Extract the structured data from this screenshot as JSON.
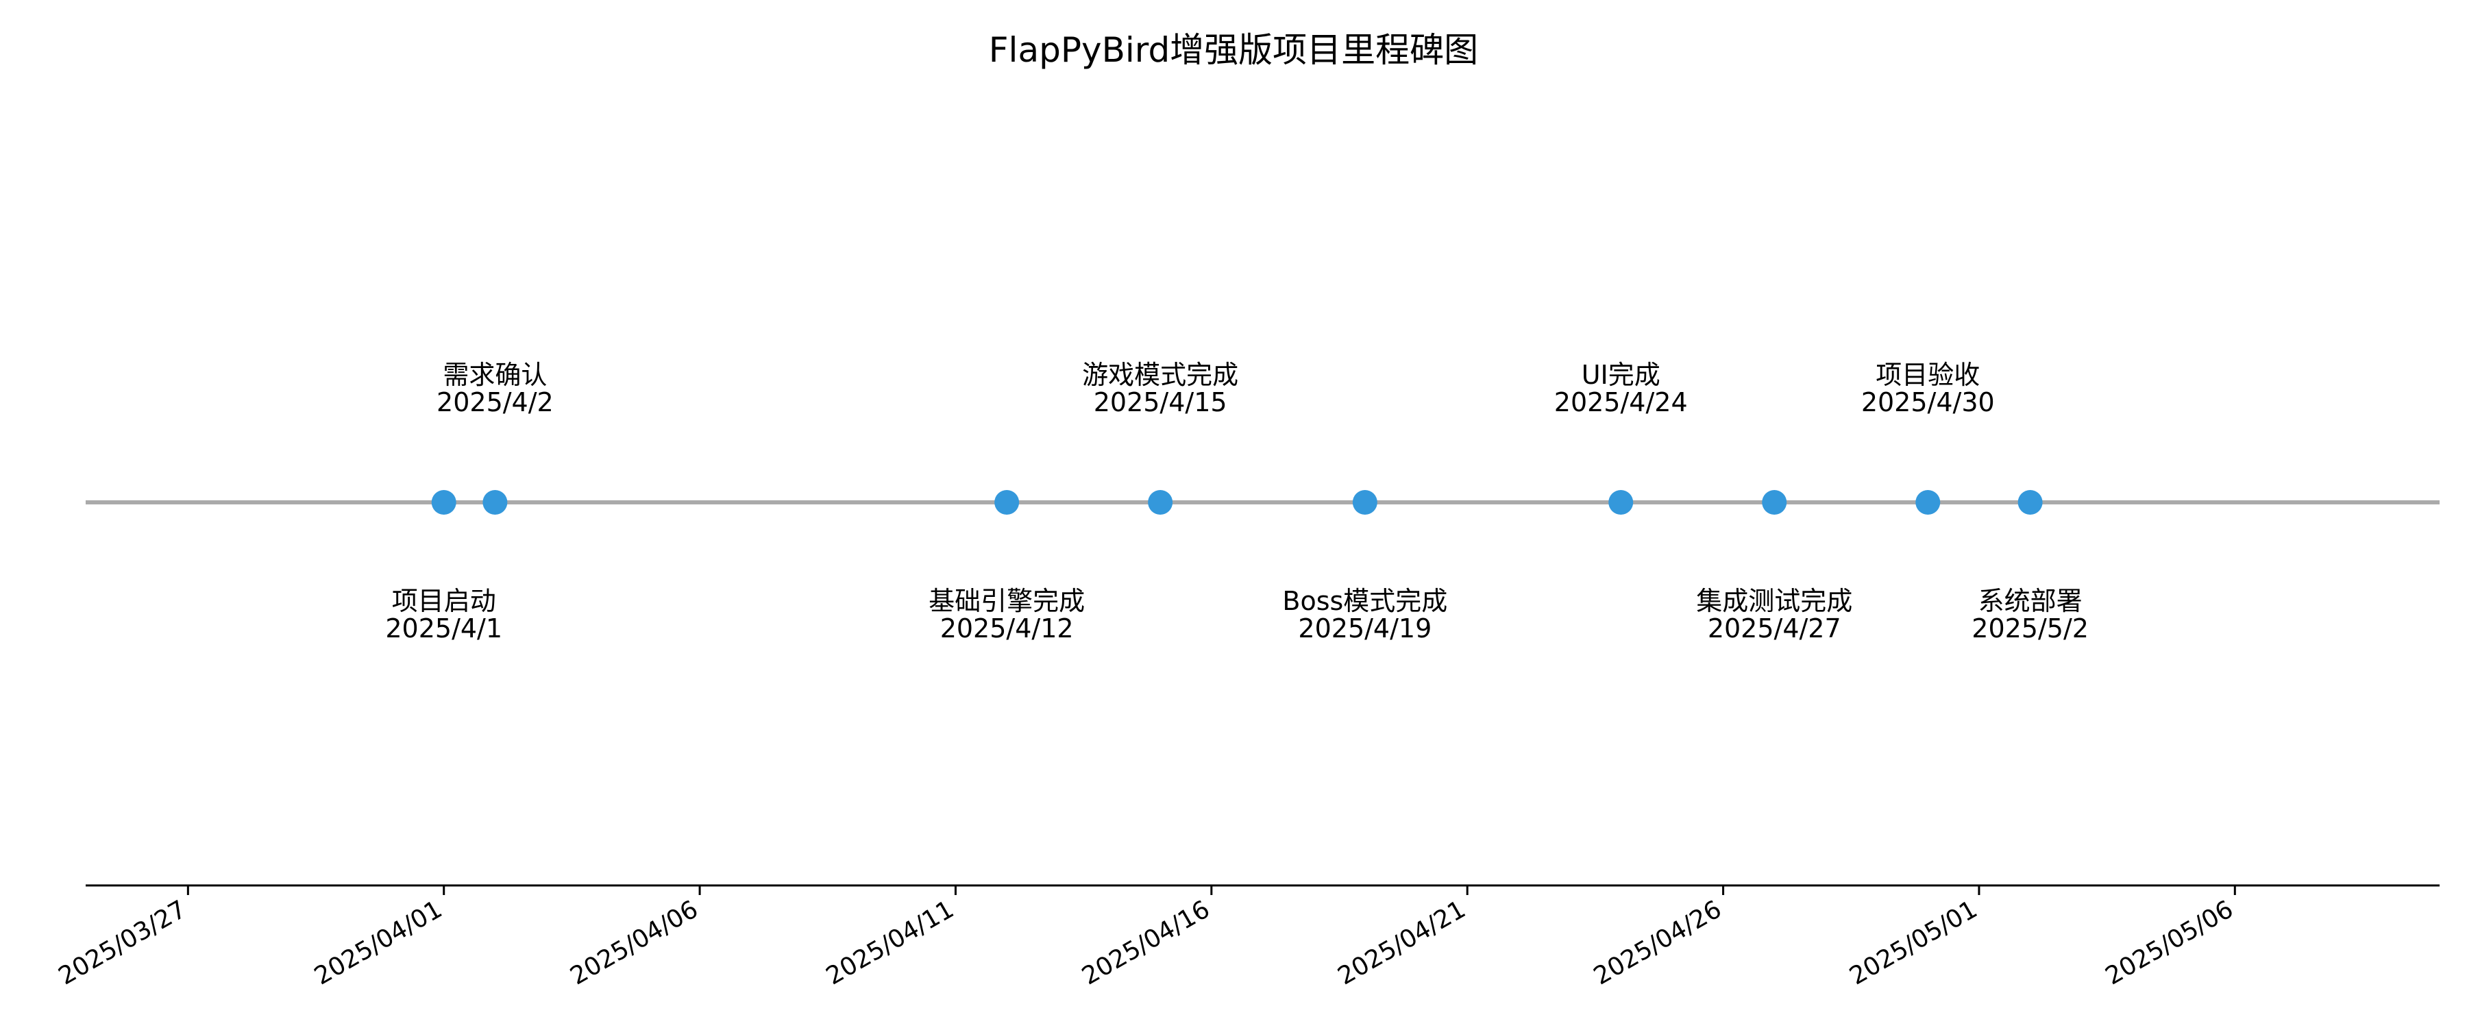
{
  "chart_data": {
    "type": "scatter",
    "title": "FlapPyBird增强版项目里程碑图",
    "xlabel": "",
    "ylabel": "",
    "xlim": [
      "2025-03-25",
      "2025-05-10"
    ],
    "grid": false,
    "legend": "none",
    "colors": {
      "point": "#3498db",
      "timeline": "#aaaaaa",
      "axis": "#000000"
    },
    "x_ticks": [
      "2025/03/27",
      "2025/04/01",
      "2025/04/06",
      "2025/04/11",
      "2025/04/16",
      "2025/04/21",
      "2025/04/26",
      "2025/05/01",
      "2025/05/06"
    ],
    "x_tick_dates": [
      "2025-03-27",
      "2025-04-01",
      "2025-04-06",
      "2025-04-11",
      "2025-04-16",
      "2025-04-21",
      "2025-04-26",
      "2025-05-01",
      "2025-05-06"
    ],
    "milestones": [
      {
        "name": "项目启动",
        "date": "2025-04-01",
        "date_label": "2025/4/1",
        "label_side": "below"
      },
      {
        "name": "需求确认",
        "date": "2025-04-02",
        "date_label": "2025/4/2",
        "label_side": "above"
      },
      {
        "name": "基础引擎完成",
        "date": "2025-04-12",
        "date_label": "2025/4/12",
        "label_side": "below"
      },
      {
        "name": "游戏模式完成",
        "date": "2025-04-15",
        "date_label": "2025/4/15",
        "label_side": "above"
      },
      {
        "name": "Boss模式完成",
        "date": "2025-04-19",
        "date_label": "2025/4/19",
        "label_side": "below"
      },
      {
        "name": "UI完成",
        "date": "2025-04-24",
        "date_label": "2025/4/24",
        "label_side": "above"
      },
      {
        "name": "集成测试完成",
        "date": "2025-04-27",
        "date_label": "2025/4/27",
        "label_side": "below"
      },
      {
        "name": "项目验收",
        "date": "2025-04-30",
        "date_label": "2025/4/30",
        "label_side": "above"
      },
      {
        "name": "系统部署",
        "date": "2025-05-02",
        "date_label": "2025/5/2",
        "label_side": "below"
      }
    ]
  }
}
